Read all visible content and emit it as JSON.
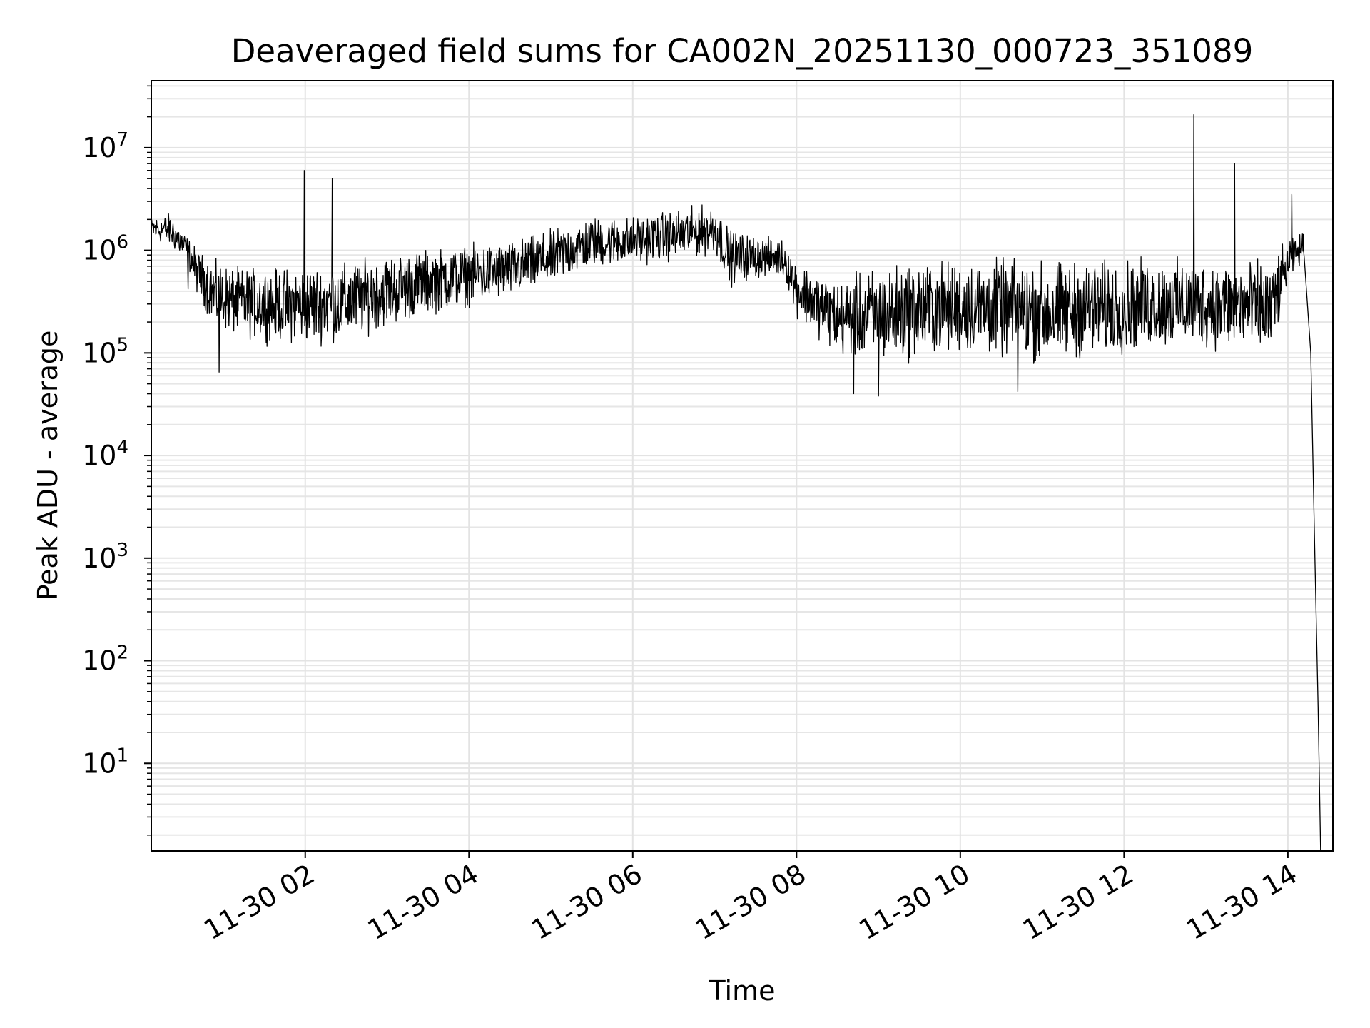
{
  "chart_data": {
    "type": "line",
    "title": "Deaveraged field sums for CA002N_20251130_000723_351089",
    "xlabel": "Time",
    "ylabel": "Peak ADU - average",
    "yscale": "log",
    "ylim": [
      1.4,
      45000000
    ],
    "xlim_hours": [
      0.12,
      14.55
    ],
    "grid": true,
    "y_ticks": [
      {
        "value": 10,
        "base": "10",
        "exp": "1"
      },
      {
        "value": 100,
        "base": "10",
        "exp": "2"
      },
      {
        "value": 1000,
        "base": "10",
        "exp": "3"
      },
      {
        "value": 10000,
        "base": "10",
        "exp": "4"
      },
      {
        "value": 100000,
        "base": "10",
        "exp": "5"
      },
      {
        "value": 1000000,
        "base": "10",
        "exp": "6"
      },
      {
        "value": 10000000,
        "base": "10",
        "exp": "7"
      }
    ],
    "x_ticks": [
      {
        "hour": 2,
        "label": "11-30 02"
      },
      {
        "hour": 4,
        "label": "11-30 04"
      },
      {
        "hour": 6,
        "label": "11-30 06"
      },
      {
        "hour": 8,
        "label": "11-30 08"
      },
      {
        "hour": 10,
        "label": "11-30 10"
      },
      {
        "hour": 12,
        "label": "11-30 12"
      },
      {
        "hour": 14,
        "label": "11-30 14"
      }
    ],
    "series": [
      {
        "name": "Peak ADU - average",
        "color": "#000000",
        "envelope": [
          {
            "hour": 0.12,
            "low": 1200000,
            "high": 2200000
          },
          {
            "hour": 0.35,
            "low": 1000000,
            "high": 2500000
          },
          {
            "hour": 0.55,
            "low": 700000,
            "high": 1500000
          },
          {
            "hour": 0.7,
            "low": 300000,
            "high": 1100000
          },
          {
            "hour": 0.9,
            "low": 150000,
            "high": 900000
          },
          {
            "hour": 1.2,
            "low": 120000,
            "high": 800000
          },
          {
            "hour": 1.6,
            "low": 110000,
            "high": 800000
          },
          {
            "hour": 2.0,
            "low": 100000,
            "high": 850000
          },
          {
            "hour": 2.5,
            "low": 110000,
            "high": 900000
          },
          {
            "hour": 3.0,
            "low": 150000,
            "high": 1100000
          },
          {
            "hour": 3.5,
            "low": 200000,
            "high": 1200000
          },
          {
            "hour": 4.0,
            "low": 250000,
            "high": 1300000
          },
          {
            "hour": 4.5,
            "low": 300000,
            "high": 1400000
          },
          {
            "hour": 5.0,
            "low": 400000,
            "high": 1800000
          },
          {
            "hour": 5.5,
            "low": 600000,
            "high": 2400000
          },
          {
            "hour": 6.0,
            "low": 650000,
            "high": 2400000
          },
          {
            "hour": 6.5,
            "low": 700000,
            "high": 2800000
          },
          {
            "hour": 7.0,
            "low": 800000,
            "high": 3200000
          },
          {
            "hour": 7.2,
            "low": 400000,
            "high": 1800000
          },
          {
            "hour": 7.6,
            "low": 500000,
            "high": 1500000
          },
          {
            "hour": 7.85,
            "low": 500000,
            "high": 1400000
          },
          {
            "hour": 8.0,
            "low": 200000,
            "high": 900000
          },
          {
            "hour": 8.5,
            "low": 80000,
            "high": 600000
          },
          {
            "hour": 9.0,
            "low": 60000,
            "high": 900000
          },
          {
            "hour": 9.5,
            "low": 70000,
            "high": 1000000
          },
          {
            "hour": 10.0,
            "low": 80000,
            "high": 1000000
          },
          {
            "hour": 10.5,
            "low": 70000,
            "high": 1050000
          },
          {
            "hour": 11.0,
            "low": 60000,
            "high": 1000000
          },
          {
            "hour": 11.5,
            "low": 70000,
            "high": 1000000
          },
          {
            "hour": 12.0,
            "low": 80000,
            "high": 1000000
          },
          {
            "hour": 12.5,
            "low": 90000,
            "high": 1000000
          },
          {
            "hour": 13.0,
            "low": 90000,
            "high": 1000000
          },
          {
            "hour": 13.5,
            "low": 80000,
            "high": 1000000
          },
          {
            "hour": 13.8,
            "low": 70000,
            "high": 1000000
          },
          {
            "hour": 14.0,
            "low": 400000,
            "high": 1400000
          },
          {
            "hour": 14.2,
            "low": 800000,
            "high": 1600000
          }
        ],
        "spikes": [
          {
            "hour": 1.99,
            "value": 6000000
          },
          {
            "hour": 2.33,
            "value": 5000000
          },
          {
            "hour": 12.85,
            "value": 21000000
          },
          {
            "hour": 13.35,
            "value": 7000000
          },
          {
            "hour": 14.05,
            "value": 3500000
          }
        ],
        "dips": [
          {
            "hour": 0.57,
            "value": 420000
          },
          {
            "hour": 0.95,
            "value": 65000
          },
          {
            "hour": 8.7,
            "value": 40000
          },
          {
            "hour": 9.0,
            "value": 38000
          },
          {
            "hour": 10.7,
            "value": 42000
          }
        ],
        "tail": [
          {
            "hour": 14.2,
            "value": 1700000
          },
          {
            "hour": 14.28,
            "value": 100000
          },
          {
            "hour": 14.33,
            "value": 1000
          },
          {
            "hour": 14.37,
            "value": 35
          },
          {
            "hour": 14.4,
            "value": 1.4
          }
        ]
      }
    ]
  }
}
